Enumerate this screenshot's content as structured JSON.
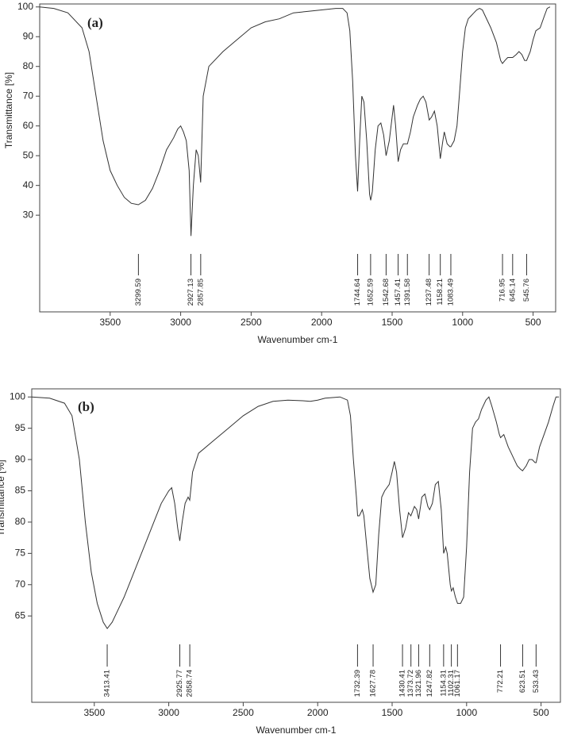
{
  "chart_data": [
    {
      "type": "line",
      "panel_label": "(a)",
      "x_label": "Wavenumber cm-1",
      "y_label": "Transmittance [%]",
      "color": "#333333",
      "xlim": [
        4000,
        340
      ],
      "ylim": [
        -2.5,
        101
      ],
      "xticks": [
        3500,
        3000,
        2500,
        2000,
        1500,
        1000,
        500
      ],
      "yticks": [
        30,
        40,
        50,
        60,
        70,
        80,
        90,
        100
      ],
      "x": [
        4000,
        3900,
        3800,
        3700,
        3650,
        3600,
        3550,
        3500,
        3450,
        3400,
        3350,
        3300,
        3250,
        3200,
        3150,
        3100,
        3050,
        3020,
        3000,
        2980,
        2960,
        2940,
        2927,
        2910,
        2890,
        2875,
        2858,
        2840,
        2800,
        2700,
        2600,
        2500,
        2400,
        2300,
        2200,
        2100,
        2000,
        1900,
        1850,
        1820,
        1800,
        1780,
        1760,
        1745,
        1730,
        1715,
        1700,
        1680,
        1660,
        1652,
        1640,
        1620,
        1600,
        1580,
        1560,
        1543,
        1520,
        1500,
        1490,
        1475,
        1457,
        1440,
        1420,
        1400,
        1391,
        1370,
        1350,
        1320,
        1300,
        1280,
        1260,
        1237,
        1220,
        1200,
        1180,
        1158,
        1140,
        1130,
        1110,
        1090,
        1083,
        1060,
        1040,
        1020,
        1000,
        980,
        960,
        940,
        920,
        900,
        880,
        860,
        840,
        800,
        760,
        730,
        717,
        700,
        680,
        660,
        645,
        620,
        600,
        580,
        560,
        546,
        520,
        500,
        480,
        450,
        420,
        400,
        380
      ],
      "values": [
        100,
        99.5,
        98,
        93,
        85,
        70,
        55,
        45,
        40,
        36,
        34,
        33.5,
        35,
        39,
        45,
        52,
        56,
        59,
        60,
        58,
        55,
        45,
        23,
        40,
        52,
        50,
        41,
        70,
        80,
        85,
        89,
        93,
        95,
        96,
        98,
        98.5,
        99,
        99.5,
        99.5,
        98,
        92,
        75,
        50,
        38,
        55,
        70,
        68,
        55,
        37,
        35,
        38,
        52,
        60,
        61,
        57,
        50,
        55,
        63,
        67,
        60,
        48,
        52,
        54,
        54,
        54,
        58,
        63,
        67,
        69,
        70,
        68,
        62,
        63,
        65,
        60,
        49,
        55,
        58,
        54,
        53,
        53,
        55,
        60,
        72,
        85,
        93,
        96,
        97,
        98,
        99,
        99.5,
        99,
        97,
        93,
        88,
        82,
        81,
        82,
        83,
        83,
        83,
        84,
        85,
        84,
        82,
        82,
        85,
        89,
        92,
        93,
        97,
        99.5,
        100
      ],
      "peaks": [
        3299.59,
        2927.13,
        2857.85,
        1744.64,
        1652.59,
        1542.68,
        1457.41,
        1391.58,
        1237.48,
        1158.21,
        1083.49,
        716.95,
        645.14,
        545.76
      ]
    },
    {
      "type": "line",
      "panel_label": "(b)",
      "x_label": "Wavenumber cm-1",
      "y_label": "Transmittance [%]",
      "color": "#333333",
      "xlim": [
        3920,
        370
      ],
      "ylim": [
        51.2,
        101.3
      ],
      "xticks": [
        3500,
        3000,
        2500,
        2000,
        1500,
        1000,
        500
      ],
      "yticks": [
        65,
        70,
        75,
        80,
        85,
        90,
        95,
        100
      ],
      "x": [
        3920,
        3800,
        3700,
        3650,
        3600,
        3560,
        3520,
        3480,
        3440,
        3413,
        3380,
        3340,
        3300,
        3250,
        3200,
        3150,
        3100,
        3050,
        3000,
        2980,
        2960,
        2940,
        2926,
        2910,
        2890,
        2870,
        2859,
        2840,
        2800,
        2700,
        2600,
        2500,
        2400,
        2300,
        2200,
        2100,
        2050,
        2000,
        1950,
        1850,
        1800,
        1780,
        1760,
        1740,
        1732,
        1720,
        1700,
        1690,
        1670,
        1650,
        1628,
        1610,
        1590,
        1570,
        1550,
        1520,
        1500,
        1485,
        1470,
        1450,
        1430,
        1410,
        1390,
        1374,
        1350,
        1335,
        1322,
        1300,
        1280,
        1260,
        1248,
        1230,
        1210,
        1190,
        1170,
        1154,
        1140,
        1130,
        1110,
        1102,
        1090,
        1075,
        1061,
        1040,
        1020,
        1000,
        980,
        960,
        940,
        920,
        900,
        870,
        850,
        830,
        800,
        780,
        772,
        750,
        720,
        700,
        680,
        660,
        640,
        624,
        600,
        580,
        560,
        540,
        533,
        510,
        480,
        450,
        420,
        400,
        380
      ],
      "values": [
        100,
        99.8,
        99,
        97,
        90,
        80,
        72,
        67,
        64,
        63,
        64,
        66,
        68,
        71,
        74,
        77,
        80,
        83,
        85,
        85.5,
        83,
        79,
        77,
        80,
        83,
        84,
        83.5,
        88,
        91,
        93,
        95,
        97,
        98.5,
        99.3,
        99.5,
        99.4,
        99.3,
        99.5,
        99.8,
        100,
        99.5,
        97,
        90,
        84,
        81,
        81,
        82,
        81,
        76,
        71,
        68.8,
        70,
        78,
        84,
        85,
        86,
        88,
        89.7,
        88,
        82,
        77.5,
        79,
        81.5,
        81,
        82.5,
        82,
        80.5,
        84,
        84.5,
        82.5,
        82,
        83,
        86,
        86.5,
        82,
        75,
        76,
        75,
        70,
        69,
        69.5,
        68,
        67,
        67,
        68,
        76,
        88,
        95,
        96,
        96.5,
        98,
        99.5,
        100,
        98.5,
        96,
        94,
        93.5,
        94,
        92,
        91,
        90,
        89,
        88.5,
        88.2,
        89,
        90,
        90,
        89.5,
        89.5,
        92,
        94,
        96,
        98.5,
        100,
        100
      ],
      "peaks": [
        3413.41,
        2925.77,
        2858.74,
        1732.39,
        1627.78,
        1430.41,
        1373.72,
        1321.96,
        1247.82,
        1154.31,
        1102.31,
        1061.17,
        772.21,
        623.51,
        533.43
      ]
    }
  ]
}
